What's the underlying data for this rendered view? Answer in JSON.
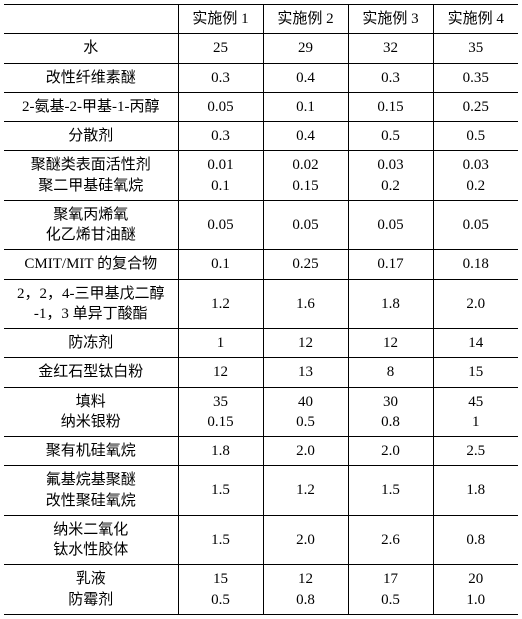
{
  "table": {
    "type": "table",
    "columns": [
      "",
      "实施例 1",
      "实施例 2",
      "实施例 3",
      "实施例 4"
    ],
    "rows": [
      {
        "label": "水",
        "v": [
          "25",
          "29",
          "32",
          "35"
        ]
      },
      {
        "label": "改性纤维素醚",
        "v": [
          "0.3",
          "0.4",
          "0.3",
          "0.35"
        ]
      },
      {
        "label": "2-氨基-2-甲基-1-丙醇",
        "v": [
          "0.05",
          "0.1",
          "0.15",
          "0.25"
        ]
      },
      {
        "label": "分散剂",
        "v": [
          "0.3",
          "0.4",
          "0.5",
          "0.5"
        ]
      },
      {
        "label": "聚醚类表面活性剂\n聚二甲基硅氧烷",
        "v": [
          "0.01\n0.1",
          "0.02\n0.15",
          "0.03\n0.2",
          "0.03\n0.2"
        ]
      },
      {
        "label": "聚氧丙烯氧\n化乙烯甘油醚",
        "v": [
          "0.05",
          "0.05",
          "0.05",
          "0.05"
        ]
      },
      {
        "label": "CMIT/MIT 的复合物",
        "v": [
          "0.1",
          "0.25",
          "0.17",
          "0.18"
        ]
      },
      {
        "label": "2，2，4-三甲基戊二醇\n-1，3 单异丁酸酯",
        "v": [
          "1.2",
          "1.6",
          "1.8",
          "2.0"
        ]
      },
      {
        "label": "防冻剂",
        "v": [
          "1",
          "12",
          "12",
          "14"
        ]
      },
      {
        "label": "金红石型钛白粉",
        "v": [
          "12",
          "13",
          "8",
          "15"
        ]
      },
      {
        "label": "填料\n纳米银粉",
        "v": [
          "35\n0.15",
          "40\n0.5",
          "30\n0.8",
          "45\n1"
        ]
      },
      {
        "label": "聚有机硅氧烷",
        "v": [
          "1.8",
          "2.0",
          "2.0",
          "2.5"
        ]
      },
      {
        "label": "氟基烷基聚醚\n改性聚硅氧烷",
        "v": [
          "1.5",
          "1.2",
          "1.5",
          "1.8"
        ]
      },
      {
        "label": "纳米二氧化\n钛水性胶体",
        "v": [
          "1.5",
          "2.0",
          "2.6",
          "0.8"
        ]
      },
      {
        "label": "乳液\n防霉剂",
        "v": [
          "15\n0.5",
          "12\n0.8",
          "17\n0.5",
          "20\n1.0"
        ]
      }
    ],
    "border_color": "#000000",
    "background_color": "#ffffff",
    "font_size": 15
  }
}
